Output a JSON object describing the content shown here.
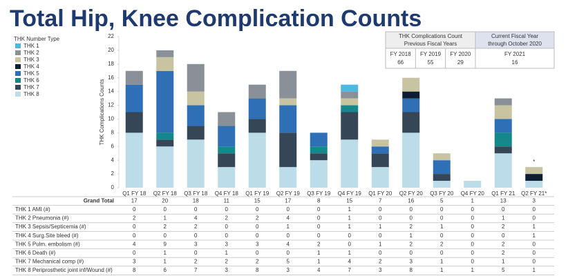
{
  "title": "Total Hip, Knee Complication Counts",
  "info_box": {
    "previous_title": [
      "THK Complications Count",
      "Previous Fiscal Years"
    ],
    "current_title": [
      "Current Fiscal Year",
      "through October 2020"
    ],
    "previous": [
      {
        "year": "FY 2018",
        "count": 66
      },
      {
        "year": "FY 2019",
        "count": 55
      },
      {
        "year": "FY 2020",
        "count": 29
      }
    ],
    "current": [
      {
        "year": "FY 2021",
        "count": 16
      }
    ]
  },
  "chart_data": {
    "type": "stacked_bar",
    "y_label": "THK Complications Counts",
    "legend_title": "THK Number Type",
    "categories": [
      "Q1 FY 18",
      "Q2 FY 18",
      "Q3 FY 18",
      "Q4 FY 18",
      "Q1 FY 19",
      "Q2 FY 19",
      "Q3 FY 19",
      "Q4 FY 19",
      "Q1 FY 20",
      "Q2 FY 20",
      "Q3 FY 20",
      "Q4 FY 20",
      "Q1 FY 21",
      "Q2 FY 21*"
    ],
    "ylim": [
      0,
      22
    ],
    "yticks": [
      0,
      2,
      4,
      6,
      8,
      10,
      12,
      14,
      16,
      18,
      20,
      22
    ],
    "annotation": "*",
    "grand_total_label": "Grand Total",
    "grand_totals": [
      17,
      20,
      18,
      11,
      15,
      17,
      8,
      15,
      7,
      16,
      5,
      1,
      13,
      3
    ],
    "series": [
      {
        "name": "THK 1",
        "label": "THK 1 AMI (#)",
        "color": "#4db8e0",
        "values": [
          0,
          0,
          0,
          0,
          0,
          0,
          0,
          1,
          0,
          0,
          0,
          0,
          0,
          0
        ]
      },
      {
        "name": "THK 2",
        "label": "THK 2 Pneumonia (#)",
        "color": "#8a9097",
        "values": [
          2,
          1,
          4,
          2,
          2,
          4,
          0,
          1,
          0,
          0,
          0,
          0,
          1,
          0
        ]
      },
      {
        "name": "THK 3",
        "label": "THK 3 Sepsis/Septicemia (#)",
        "color": "#c8c4a2",
        "values": [
          0,
          2,
          2,
          0,
          0,
          1,
          0,
          1,
          1,
          2,
          1,
          0,
          2,
          1
        ]
      },
      {
        "name": "THK 4",
        "label": "THK 4 Surg.Site bleed (#)",
        "color": "#0d1e33",
        "values": [
          0,
          0,
          0,
          0,
          0,
          0,
          0,
          0,
          0,
          1,
          0,
          0,
          0,
          1
        ]
      },
      {
        "name": "THK 5",
        "label": "THK 5 Pulm. embolism (#)",
        "color": "#2f6fb5",
        "values": [
          4,
          9,
          3,
          3,
          3,
          4,
          2,
          0,
          1,
          2,
          2,
          0,
          2,
          0
        ]
      },
      {
        "name": "THK 6",
        "label": "THK 6 Death (#)",
        "color": "#13898b",
        "values": [
          0,
          1,
          0,
          1,
          0,
          0,
          1,
          1,
          0,
          0,
          0,
          0,
          2,
          0
        ]
      },
      {
        "name": "THK 7",
        "label": "THK 7 Mechanical comp (#)",
        "color": "#354757",
        "values": [
          3,
          1,
          2,
          2,
          2,
          5,
          1,
          4,
          2,
          3,
          1,
          0,
          1,
          0
        ]
      },
      {
        "name": "THK 8",
        "label": "THK 8 Periprosthetic joint inf/Wound (#)",
        "color": "#bcdcea",
        "values": [
          8,
          6,
          7,
          3,
          8,
          3,
          4,
          7,
          3,
          8,
          1,
          1,
          5,
          1
        ]
      }
    ]
  }
}
